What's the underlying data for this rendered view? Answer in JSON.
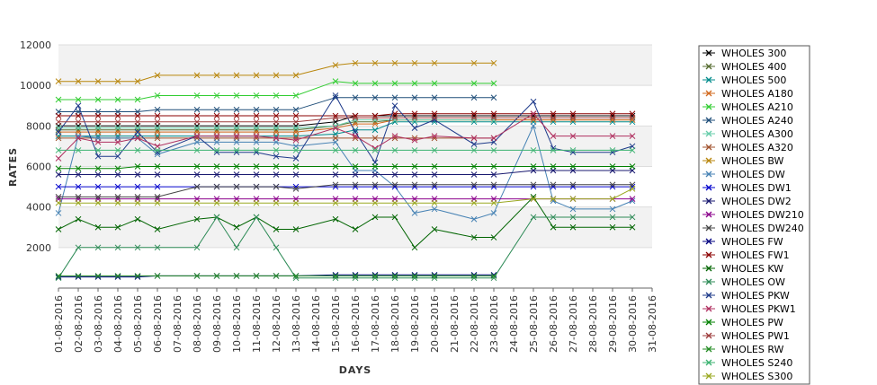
{
  "chart_data": {
    "type": "line",
    "xlabel": "DAYS",
    "ylabel": "RATES",
    "ylim": [
      0,
      12000
    ],
    "yticks": [
      2000,
      4000,
      6000,
      8000,
      10000,
      12000
    ],
    "grid": "alternating horizontal bands, light horizontal gridlines",
    "legend_position": "right",
    "categories": [
      "01-08-2016",
      "02-08-2016",
      "03-08-2016",
      "04-08-2016",
      "05-08-2016",
      "06-08-2016",
      "07-08-2016",
      "08-08-2016",
      "09-08-2016",
      "10-08-2016",
      "11-08-2016",
      "12-08-2016",
      "13-08-2016",
      "14-08-2016",
      "15-08-2016",
      "16-08-2016",
      "17-08-2016",
      "18-08-2016",
      "19-08-2016",
      "20-08-2016",
      "21-08-2016",
      "22-08-2016",
      "23-08-2016",
      "24-08-2016",
      "25-08-2016",
      "26-08-2016",
      "27-08-2016",
      "28-08-2016",
      "29-08-2016",
      "30-08-2016",
      "31-08-2016"
    ],
    "series": [
      {
        "name": "WHOLES 300",
        "color": "#000000",
        "values": [
          8000,
          8000,
          8000,
          8000,
          8000,
          8000,
          null,
          8000,
          8000,
          8000,
          8000,
          8000,
          8000,
          null,
          8200,
          8500,
          8500,
          8500,
          8500,
          8500,
          null,
          8500,
          8500,
          null,
          8500,
          8500,
          8500,
          null,
          8500,
          8500,
          null
        ]
      },
      {
        "name": "WHOLES 400",
        "color": "#556b2f",
        "values": [
          7800,
          7800,
          7800,
          7800,
          7800,
          7800,
          null,
          7800,
          7800,
          7800,
          7800,
          7800,
          7800,
          null,
          8000,
          8200,
          8200,
          8300,
          8300,
          8300,
          null,
          8300,
          8300,
          null,
          8300,
          8300,
          8300,
          null,
          8300,
          8300,
          null
        ]
      },
      {
        "name": "WHOLES 500",
        "color": "#008b8b",
        "values": [
          7500,
          7500,
          7500,
          7500,
          7500,
          7500,
          null,
          7500,
          7500,
          7500,
          7500,
          7500,
          7500,
          null,
          7600,
          7800,
          7800,
          8200,
          8200,
          8200,
          null,
          8200,
          8200,
          null,
          8200,
          8200,
          8200,
          null,
          8200,
          8200,
          null
        ]
      },
      {
        "name": "WHOLES A180",
        "color": "#d2691e",
        "values": [
          7700,
          7700,
          7700,
          7700,
          7700,
          7700,
          null,
          7700,
          7700,
          7700,
          7700,
          7700,
          7700,
          null,
          7900,
          8100,
          8100,
          8300,
          8300,
          8300,
          null,
          8300,
          8300,
          null,
          8300,
          8300,
          8300,
          null,
          8300,
          8300,
          null
        ]
      },
      {
        "name": "WHOLES A210",
        "color": "#32cd32",
        "values": [
          9300,
          9300,
          9300,
          9300,
          9300,
          9500,
          null,
          9500,
          9500,
          9500,
          9500,
          9500,
          9500,
          null,
          10200,
          10100,
          10100,
          10100,
          10100,
          10100,
          null,
          10100,
          10100,
          null,
          null,
          null,
          null,
          null,
          null,
          null,
          null
        ]
      },
      {
        "name": "WHOLES A240",
        "color": "#1f4e79",
        "values": [
          8700,
          8700,
          8700,
          8700,
          8700,
          8800,
          null,
          8800,
          8800,
          8800,
          8800,
          8800,
          8800,
          null,
          9400,
          9400,
          9400,
          9400,
          9400,
          9400,
          null,
          9400,
          9400,
          null,
          null,
          null,
          null,
          null,
          null,
          null,
          null
        ]
      },
      {
        "name": "WHOLES A300",
        "color": "#66cdaa",
        "values": [
          7900,
          7900,
          7900,
          7900,
          7900,
          7900,
          null,
          7900,
          7900,
          7900,
          7900,
          7900,
          7900,
          null,
          8000,
          8300,
          8300,
          8300,
          8300,
          8300,
          null,
          8300,
          8300,
          null,
          null,
          null,
          null,
          null,
          null,
          null,
          null
        ]
      },
      {
        "name": "WHOLES A320",
        "color": "#a0522d",
        "values": [
          7400,
          7400,
          7400,
          7400,
          7400,
          7400,
          null,
          7400,
          7400,
          7400,
          7400,
          7400,
          7400,
          null,
          7400,
          7400,
          7400,
          7400,
          7400,
          7400,
          null,
          7400,
          7400,
          null,
          null,
          null,
          null,
          null,
          null,
          null,
          null
        ]
      },
      {
        "name": "WHOLES BW",
        "color": "#b8860b",
        "values": [
          10200,
          10200,
          10200,
          10200,
          10200,
          10500,
          null,
          10500,
          10500,
          10500,
          10500,
          10500,
          10500,
          null,
          11000,
          11100,
          11100,
          11100,
          11100,
          11100,
          null,
          11100,
          11100,
          null,
          null,
          null,
          null,
          null,
          null,
          null,
          null
        ]
      },
      {
        "name": "WHOLES DW",
        "color": "#4682b4",
        "values": [
          3700,
          7500,
          7400,
          7400,
          7400,
          6600,
          null,
          7200,
          7200,
          7200,
          7200,
          7200,
          7000,
          null,
          7200,
          5800,
          5800,
          5000,
          3700,
          3900,
          null,
          3400,
          3700,
          null,
          8000,
          4300,
          3900,
          null,
          3900,
          4300,
          null
        ]
      },
      {
        "name": "WHOLES DW1",
        "color": "#0000cd",
        "values": [
          5000,
          5000,
          5000,
          5000,
          5000,
          5000,
          null,
          5000,
          5000,
          5000,
          5000,
          5000,
          5000,
          null,
          5000,
          5000,
          5000,
          5000,
          5000,
          5000,
          null,
          5000,
          5000,
          null,
          5000,
          5000,
          5000,
          null,
          5000,
          5000,
          null
        ]
      },
      {
        "name": "WHOLES DW2",
        "color": "#191970",
        "values": [
          5600,
          5600,
          5600,
          5600,
          5600,
          5600,
          null,
          5600,
          5600,
          5600,
          5600,
          5600,
          5600,
          null,
          5600,
          5600,
          5600,
          5600,
          5600,
          5600,
          null,
          5600,
          5600,
          null,
          5800,
          5800,
          5800,
          null,
          5800,
          5800,
          null
        ]
      },
      {
        "name": "WHOLES DW210",
        "color": "#8b008b",
        "values": [
          4400,
          4400,
          4400,
          4400,
          4400,
          4400,
          null,
          4400,
          4400,
          4400,
          4400,
          4400,
          4400,
          null,
          4400,
          4400,
          4400,
          4400,
          4400,
          4400,
          null,
          4400,
          4400,
          null,
          4400,
          4400,
          4400,
          null,
          4400,
          4400,
          null
        ]
      },
      {
        "name": "WHOLES DW240",
        "color": "#444444",
        "values": [
          4500,
          4500,
          4500,
          4500,
          4500,
          4500,
          null,
          5000,
          5000,
          5000,
          5000,
          5000,
          4900,
          null,
          5100,
          5100,
          5100,
          5100,
          5100,
          5100,
          null,
          5100,
          5100,
          null,
          5100,
          5100,
          5100,
          null,
          5100,
          5100,
          null
        ]
      },
      {
        "name": "WHOLES FW",
        "color": "#000080",
        "values": [
          550,
          550,
          550,
          550,
          550,
          600,
          null,
          600,
          600,
          600,
          600,
          600,
          600,
          null,
          650,
          650,
          650,
          650,
          650,
          650,
          null,
          650,
          650,
          null,
          null,
          null,
          null,
          null,
          null,
          null,
          null
        ]
      },
      {
        "name": "WHOLES FW1",
        "color": "#8b0000",
        "values": [
          8500,
          8500,
          8500,
          8500,
          8500,
          8500,
          null,
          8500,
          8500,
          8500,
          8500,
          8500,
          8500,
          null,
          8500,
          8500,
          8500,
          8600,
          8600,
          8600,
          null,
          8600,
          8600,
          null,
          8600,
          8600,
          8600,
          null,
          8600,
          8600,
          null
        ]
      },
      {
        "name": "WHOLES KW",
        "color": "#006400",
        "values": [
          2900,
          3400,
          3000,
          3000,
          3400,
          2900,
          null,
          3400,
          3500,
          3000,
          3500,
          2900,
          2900,
          null,
          3400,
          2900,
          3500,
          3500,
          2000,
          2900,
          null,
          2500,
          2500,
          null,
          4500,
          3000,
          3000,
          null,
          3000,
          3000,
          null
        ]
      },
      {
        "name": "WHOLES OW",
        "color": "#2e8b57",
        "values": [
          500,
          2000,
          2000,
          2000,
          2000,
          2000,
          null,
          2000,
          3500,
          2000,
          3500,
          2000,
          500,
          null,
          500,
          500,
          500,
          500,
          500,
          500,
          null,
          500,
          500,
          null,
          3500,
          3500,
          3500,
          null,
          3500,
          3500,
          null
        ]
      },
      {
        "name": "WHOLES PKW",
        "color": "#1e3a8a",
        "values": [
          7700,
          9000,
          6500,
          6500,
          7700,
          6700,
          null,
          7500,
          6700,
          6700,
          6700,
          6500,
          6400,
          null,
          9500,
          7700,
          6200,
          9000,
          7900,
          8300,
          null,
          7100,
          7200,
          null,
          9200,
          6900,
          6700,
          null,
          6700,
          7000,
          null
        ]
      },
      {
        "name": "WHOLES PKW1",
        "color": "#b03060",
        "values": [
          6400,
          7400,
          7200,
          7200,
          7400,
          7000,
          null,
          7500,
          7500,
          7500,
          7500,
          7400,
          7300,
          null,
          7900,
          7500,
          6900,
          7500,
          7300,
          7500,
          null,
          7400,
          7400,
          null,
          8600,
          7500,
          7500,
          null,
          7500,
          7500,
          null
        ]
      },
      {
        "name": "WHOLES PW",
        "color": "#008000",
        "values": [
          5900,
          5900,
          5900,
          5900,
          6000,
          6000,
          null,
          6000,
          6000,
          6000,
          6000,
          6000,
          6000,
          null,
          6000,
          6000,
          6000,
          6000,
          6000,
          6000,
          null,
          6000,
          6000,
          null,
          6000,
          6000,
          6000,
          null,
          6000,
          6000,
          null
        ]
      },
      {
        "name": "WHOLES PW1",
        "color": "#9e3b3b",
        "values": [
          8200,
          8200,
          8200,
          8200,
          8200,
          8200,
          null,
          8200,
          8200,
          8200,
          8200,
          8200,
          8200,
          null,
          8400,
          8400,
          8400,
          8400,
          8400,
          8400,
          null,
          8400,
          8400,
          null,
          8400,
          8400,
          8400,
          null,
          8400,
          8400,
          null
        ]
      },
      {
        "name": "WHOLES RW",
        "color": "#228b22",
        "values": [
          600,
          600,
          600,
          600,
          600,
          600,
          null,
          600,
          600,
          600,
          600,
          600,
          600,
          null,
          600,
          600,
          600,
          600,
          600,
          600,
          null,
          600,
          600,
          null,
          null,
          null,
          null,
          null,
          null,
          null,
          null
        ]
      },
      {
        "name": "WHOLES S240",
        "color": "#3cb371",
        "values": [
          6800,
          6800,
          6800,
          6800,
          6800,
          6800,
          null,
          6800,
          6800,
          6800,
          6800,
          6800,
          6800,
          null,
          6800,
          6800,
          6800,
          6800,
          6800,
          6800,
          null,
          6800,
          6800,
          null,
          6800,
          6800,
          6800,
          null,
          6800,
          6800,
          null
        ]
      },
      {
        "name": "WHOLES S300",
        "color": "#9aa820",
        "values": [
          4200,
          4200,
          4200,
          4200,
          4200,
          4200,
          null,
          4200,
          4200,
          4200,
          4200,
          4200,
          4200,
          null,
          4200,
          4200,
          4200,
          4200,
          4200,
          4200,
          null,
          4200,
          4200,
          null,
          4400,
          4400,
          4400,
          null,
          4400,
          4900,
          null
        ]
      }
    ]
  }
}
